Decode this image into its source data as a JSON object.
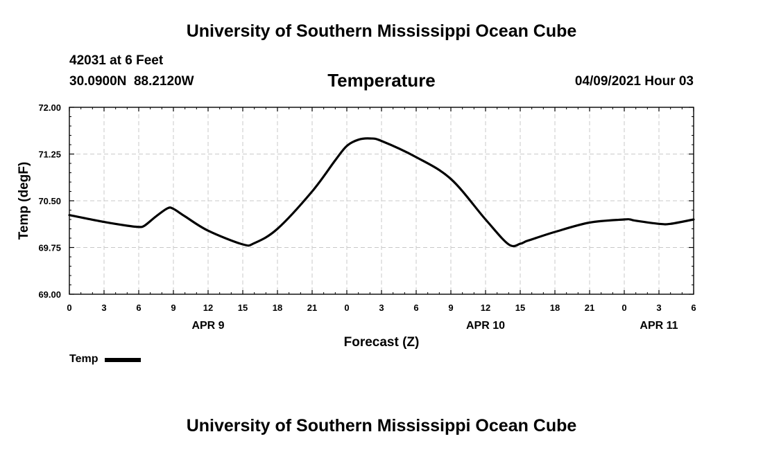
{
  "header": {
    "title_top": "University of Southern Mississippi Ocean Cube",
    "station": "42031 at 6 Feet",
    "coords": "30.0900N  88.2120W",
    "chart_title": "Temperature",
    "datetime": "04/09/2021 Hour 03",
    "title_bottom": "University of Southern Mississippi Ocean Cube"
  },
  "colors": {
    "line": "#000000",
    "grid": "#c8c8c8",
    "background": "#ffffff"
  },
  "chart_data": {
    "type": "line",
    "title": "Temperature",
    "xlabel": "Forecast (Z)",
    "ylabel": "Temp (degF)",
    "ylim": [
      69.0,
      72.0
    ],
    "xlim": [
      0,
      54
    ],
    "y_ticks": [
      "72.00",
      "71.25",
      "70.50",
      "69.75",
      "69.00"
    ],
    "y_tick_values": [
      72.0,
      71.25,
      70.5,
      69.75,
      69.0
    ],
    "x_tick_hours": [
      0,
      3,
      6,
      9,
      12,
      15,
      18,
      21,
      24,
      27,
      30,
      33,
      36,
      39,
      42,
      45,
      48,
      51,
      54
    ],
    "x_tick_labels": [
      "0",
      "3",
      "6",
      "9",
      "12",
      "15",
      "18",
      "21",
      "0",
      "3",
      "6",
      "9",
      "12",
      "15",
      "18",
      "21",
      "0",
      "3",
      "6"
    ],
    "date_labels": [
      {
        "label": "APR 9",
        "hour": 12
      },
      {
        "label": "APR 10",
        "hour": 36
      },
      {
        "label": "APR 11",
        "hour": 51
      }
    ],
    "grid": true,
    "legend": {
      "position": "bottom-left",
      "entries": [
        "Temp"
      ]
    },
    "series": [
      {
        "name": "Temp",
        "x": [
          0,
          3,
          5,
          6,
          6.5,
          7.5,
          8.5,
          9,
          10,
          12,
          15,
          16,
          18,
          21,
          23,
          24,
          25,
          26,
          27,
          30,
          33,
          36,
          38,
          39,
          39.5,
          40,
          42,
          45,
          48,
          48.5,
          49,
          51,
          52,
          54
        ],
        "y": [
          70.27,
          70.16,
          70.1,
          70.08,
          70.1,
          70.25,
          70.38,
          70.37,
          70.25,
          70.02,
          69.8,
          69.82,
          70.05,
          70.65,
          71.15,
          71.38,
          71.48,
          71.5,
          71.46,
          71.2,
          70.85,
          70.2,
          69.8,
          69.81,
          69.85,
          69.88,
          70.0,
          70.15,
          70.2,
          70.2,
          70.18,
          70.13,
          70.13,
          70.2
        ]
      }
    ]
  }
}
